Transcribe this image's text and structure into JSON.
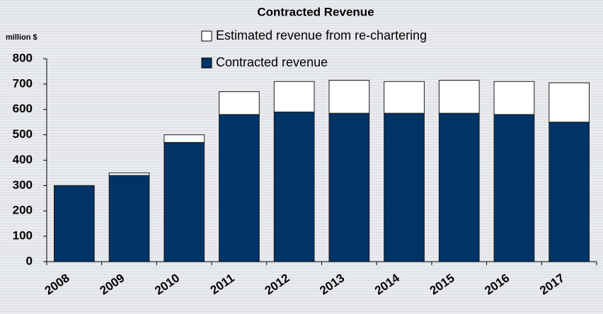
{
  "chart_data": {
    "type": "stacked_bar",
    "title": "Contracted Revenue",
    "y_label": "million $",
    "categories": [
      "2008",
      "2009",
      "2010",
      "2011",
      "2012",
      "2013",
      "2014",
      "2015",
      "2016",
      "2017"
    ],
    "series": [
      {
        "name": "Contracted revenue",
        "color": "#003366",
        "values": [
          300,
          340,
          470,
          580,
          590,
          585,
          585,
          585,
          580,
          550
        ]
      },
      {
        "name": "Estimated revenue from re-chartering",
        "color": "#ffffff",
        "values": [
          0,
          10,
          30,
          90,
          120,
          130,
          125,
          130,
          130,
          155
        ]
      }
    ],
    "ylim": [
      0,
      800
    ],
    "yticks": [
      0,
      100,
      200,
      300,
      400,
      500,
      600,
      700,
      800
    ]
  }
}
